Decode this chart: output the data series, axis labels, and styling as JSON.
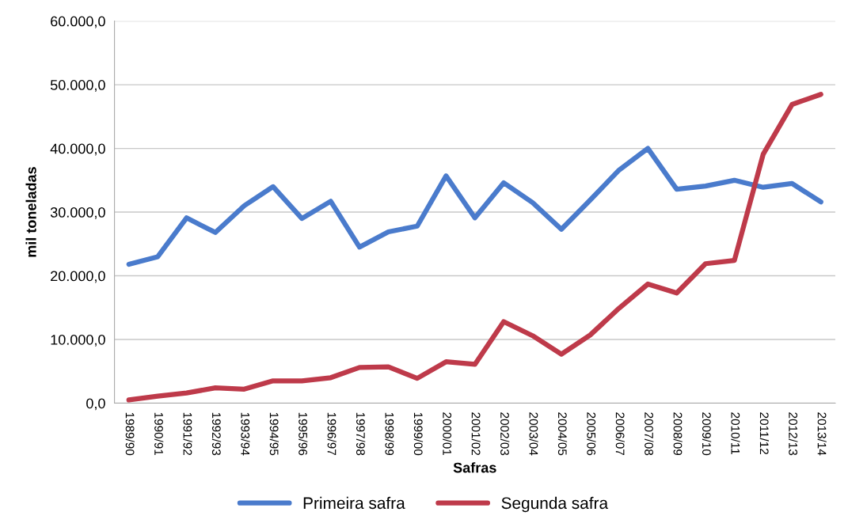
{
  "chart_data": {
    "type": "line",
    "xlabel": "Safras",
    "ylabel": "mil toneladas",
    "categories": [
      "1989/90",
      "1990/91",
      "1991/92",
      "1992/93",
      "1993/94",
      "1994/95",
      "1995/96",
      "1996/97",
      "1997/98",
      "1998/99",
      "1999/00",
      "2000/01",
      "2001/02",
      "2002/03",
      "2003/04",
      "2004/05",
      "2005/06",
      "2006/07",
      "2007/08",
      "2008/09",
      "2009/10",
      "2010/11",
      "2011/12",
      "2012/13",
      "2013/14"
    ],
    "series": [
      {
        "name": "Primeira safra",
        "color": "#4a7bcc",
        "values": [
          21800,
          23000,
          29100,
          26800,
          31000,
          34000,
          29000,
          31700,
          24500,
          26900,
          27800,
          35700,
          29100,
          34600,
          31500,
          27300,
          31900,
          36600,
          40000,
          33600,
          34100,
          35000,
          33900,
          34500,
          31600
        ]
      },
      {
        "name": "Segunda safra",
        "color": "#be3a4a",
        "values": [
          500,
          1100,
          1600,
          2400,
          2200,
          3500,
          3500,
          4000,
          5600,
          5700,
          3900,
          6500,
          6100,
          12800,
          10600,
          7700,
          10700,
          14900,
          18700,
          17300,
          21900,
          22400,
          39100,
          46900,
          48500
        ]
      }
    ],
    "ylim": [
      0,
      60000
    ],
    "yticks": [
      {
        "value": 0,
        "label": "0,0"
      },
      {
        "value": 10000,
        "label": "10.000,0"
      },
      {
        "value": 20000,
        "label": "20.000,0"
      },
      {
        "value": 30000,
        "label": "30.000,0"
      },
      {
        "value": 40000,
        "label": "40.000,0"
      },
      {
        "value": 50000,
        "label": "50.000,0"
      },
      {
        "value": 60000,
        "label": "60.000,0"
      }
    ],
    "grid": "y",
    "legend": "bottom",
    "marker": "none",
    "line_style": "solid"
  }
}
